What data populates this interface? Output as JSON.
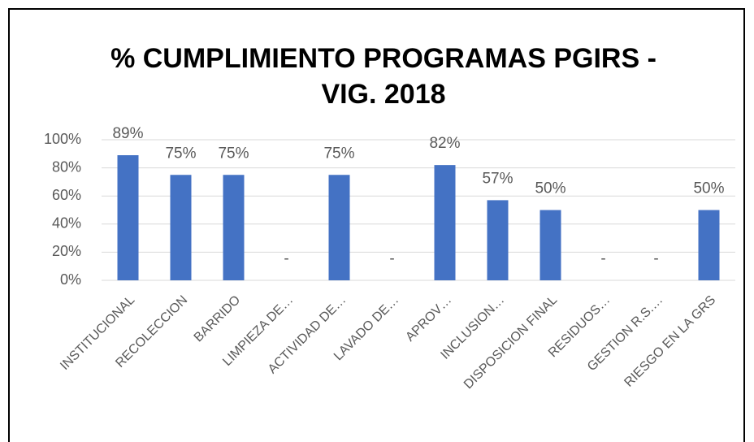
{
  "chart_data": {
    "type": "bar",
    "title": [
      "% CUMPLIMIENTO PROGRAMAS PGIRS -",
      "VIG. 2018"
    ],
    "categories": [
      "INSTITUCIONAL",
      "RECOLECCION",
      "BARRIDO",
      "LIMPIEZA DE…",
      "ACTIVIDAD DE…",
      "LAVADO DE…",
      "APROV…",
      "INCLUSION…",
      "DISPOSICION FINAL",
      "RESIDUOS…",
      "GESTION R.S.…",
      "RIESGO EN LA GRS"
    ],
    "values": [
      89,
      75,
      75,
      0,
      75,
      0,
      82,
      57,
      50,
      0,
      0,
      50
    ],
    "value_labels": [
      "89%",
      "75%",
      "75%",
      "-",
      "75%",
      "-",
      "82%",
      "57%",
      "50%",
      "-",
      "-",
      "50%"
    ],
    "color": "#4472c4",
    "ylim": [
      0,
      100
    ],
    "yticks": [
      {
        "value": 0,
        "label": "0%"
      },
      {
        "value": 20,
        "label": "20%"
      },
      {
        "value": 40,
        "label": "40%"
      },
      {
        "value": 60,
        "label": "60%"
      },
      {
        "value": 80,
        "label": "80%"
      },
      {
        "value": 100,
        "label": "100%"
      }
    ],
    "grid": true
  }
}
